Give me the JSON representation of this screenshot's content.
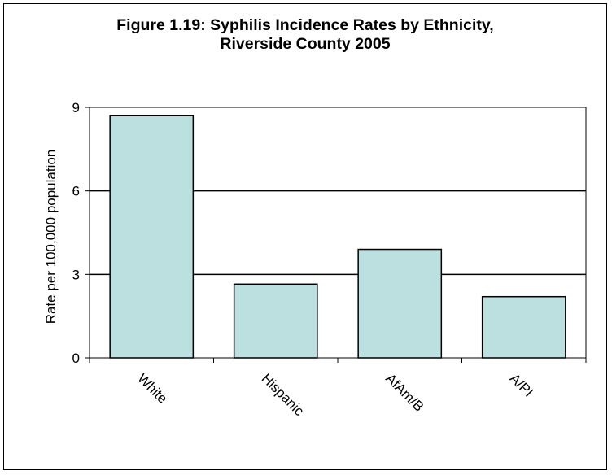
{
  "chart_data": {
    "type": "bar",
    "title_lines": [
      "Figure 1.19: Syphilis Incidence Rates by Ethnicity,",
      "Riverside County 2005"
    ],
    "xlabel": "",
    "ylabel": "Rate per 100,000 population",
    "categories": [
      "White",
      "Hispanic",
      "AfAm/B",
      "A/PI"
    ],
    "values": [
      8.7,
      2.65,
      3.9,
      2.2
    ],
    "ylim": [
      0,
      9
    ],
    "yticks": [
      0,
      3,
      6,
      9
    ],
    "grid": true,
    "legend": "none",
    "bar_color": "#BCE0E0",
    "bar_edge_color": "#000000"
  }
}
